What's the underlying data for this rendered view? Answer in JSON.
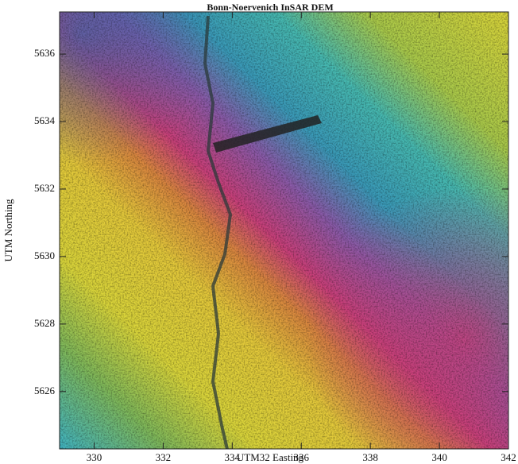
{
  "chart_data": {
    "type": "image",
    "title": "Bonn-Noervenich InSAR DEM",
    "x_label": "UTM32 Easting",
    "y_label": "UTM Northing",
    "xlim": [
      329,
      342
    ],
    "ylim": [
      5624.3,
      5637.25
    ],
    "xticks": [
      330,
      332,
      334,
      336,
      338,
      340,
      342
    ],
    "yticks": [
      5626,
      5628,
      5630,
      5632,
      5634,
      5636
    ]
  }
}
